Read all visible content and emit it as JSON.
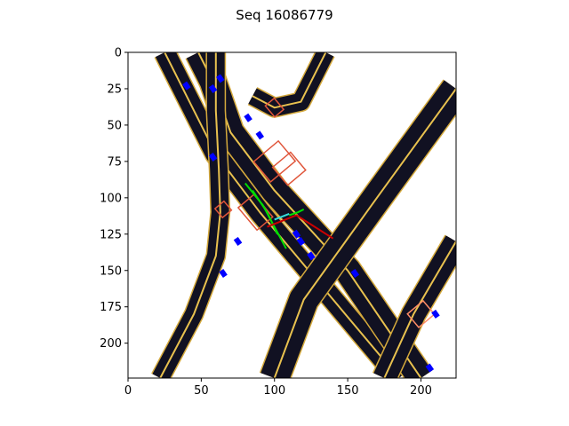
{
  "chart_data": {
    "type": "image",
    "title": "Seq 16086779",
    "xlabel": "",
    "ylabel": "",
    "xlim": [
      0,
      224
    ],
    "ylim": [
      224,
      0
    ],
    "xticks": [
      0,
      50,
      100,
      150,
      200
    ],
    "yticks": [
      0,
      25,
      50,
      75,
      100,
      125,
      150,
      175,
      200
    ],
    "grid": false,
    "colors": {
      "road": "#111122",
      "lane": "#e8c14f",
      "road_edge": "#d4a93c",
      "agent": "#0000ff",
      "agent_box": "#e0553a",
      "highlight_box": "#ff8c66",
      "trajectory_green": "#00dd00",
      "trajectory_cyan": "#33dddd",
      "trajectory_red": "#cc0000"
    },
    "roads": [
      {
        "points": [
          [
            25,
            0
          ],
          [
            40,
            30
          ],
          [
            60,
            70
          ],
          [
            90,
            110
          ],
          [
            140,
            170
          ],
          [
            185,
            224
          ]
        ],
        "width": 14
      },
      {
        "points": [
          [
            48,
            0
          ],
          [
            58,
            20
          ],
          [
            70,
            55
          ],
          [
            100,
            95
          ],
          [
            150,
            150
          ],
          [
            200,
            224
          ]
        ],
        "width": 18
      },
      {
        "points": [
          [
            60,
            0
          ],
          [
            60,
            40
          ],
          [
            62,
            80
          ],
          [
            63,
            110
          ],
          [
            60,
            140
          ],
          [
            45,
            180
          ],
          [
            22,
            224
          ]
        ],
        "width": 12
      },
      {
        "points": [
          [
            224,
            25
          ],
          [
            170,
            100
          ],
          [
            120,
            170
          ],
          [
            100,
            224
          ]
        ],
        "width": 20
      },
      {
        "points": [
          [
            224,
            130
          ],
          [
            195,
            180
          ],
          [
            175,
            224
          ]
        ],
        "width": 16
      },
      {
        "points": [
          [
            85,
            30
          ],
          [
            100,
            38
          ],
          [
            118,
            34
          ],
          [
            135,
            0
          ]
        ],
        "width": 12
      }
    ],
    "agents": [
      [
        40,
        23
      ],
      [
        58,
        25
      ],
      [
        63,
        18
      ],
      [
        82,
        45
      ],
      [
        90,
        57
      ],
      [
        58,
        72
      ],
      [
        115,
        125
      ],
      [
        118,
        130
      ],
      [
        125,
        140
      ],
      [
        75,
        130
      ],
      [
        65,
        152
      ],
      [
        155,
        152
      ],
      [
        210,
        180
      ],
      [
        206,
        217
      ]
    ],
    "agent_boxes": [
      {
        "center": [
          100,
          75
        ],
        "size": [
          22,
          18
        ]
      },
      {
        "center": [
          110,
          80
        ],
        "size": [
          16,
          16
        ]
      },
      {
        "center": [
          65,
          108
        ],
        "size": [
          8,
          8
        ]
      },
      {
        "center": [
          100,
          38
        ],
        "size": [
          8,
          10
        ]
      },
      {
        "center": [
          87,
          110
        ],
        "size": [
          14,
          20
        ]
      },
      {
        "center": [
          200,
          180
        ],
        "size": [
          14,
          12
        ]
      }
    ],
    "trajectories": [
      {
        "color": "green",
        "points": [
          [
            80,
            90
          ],
          [
            92,
            105
          ],
          [
            100,
            120
          ],
          [
            108,
            135
          ]
        ]
      },
      {
        "color": "green",
        "points": [
          [
            85,
            95
          ],
          [
            95,
            110
          ],
          [
            102,
            125
          ]
        ]
      },
      {
        "color": "green",
        "points": [
          [
            110,
            112
          ],
          [
            116,
            110
          ],
          [
            120,
            108
          ]
        ]
      },
      {
        "color": "cyan",
        "points": [
          [
            100,
            115
          ],
          [
            110,
            111
          ]
        ]
      },
      {
        "color": "red",
        "points": [
          [
            95,
            120
          ],
          [
            115,
            112
          ],
          [
            140,
            128
          ]
        ]
      }
    ]
  }
}
